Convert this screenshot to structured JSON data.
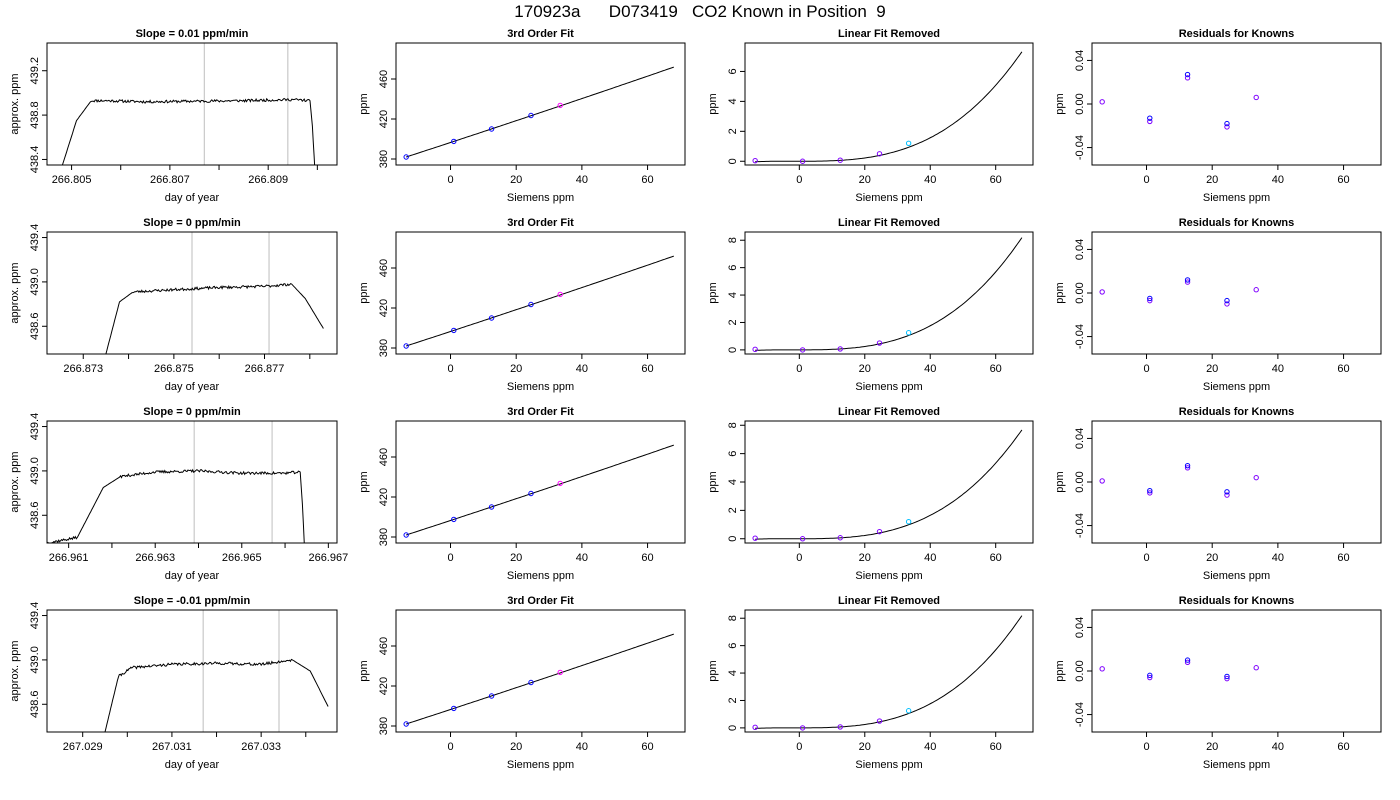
{
  "figure": {
    "title": "170923a      D073419   CO2 Known in Position  9"
  },
  "colors": {
    "trace": "#000000",
    "gridline": "#bebebe",
    "point_blue": "#0000ff",
    "point_magenta": "#ff00ff",
    "point_cyan": "#00bfff",
    "point_purple": "#7f00ff"
  },
  "chart_data": [
    {
      "type": "line",
      "row": 1,
      "title": "Slope =  0.01  ppm/min",
      "xlabel": "day of year",
      "ylabel": "approx. ppm",
      "xlim": [
        266.8045,
        266.8104
      ],
      "ylim": [
        438.35,
        439.45
      ],
      "xticks": [
        266.805,
        266.807,
        266.809
      ],
      "xtick_labels": [
        "266.805",
        "266.807",
        "266.809"
      ],
      "xminor": [
        266.806,
        266.808,
        266.81
      ],
      "yticks": [
        438.4,
        438.8,
        439.2
      ],
      "ytick_labels": [
        "438.4",
        "438.8",
        "439.2"
      ],
      "vlines": [
        266.8077,
        266.8094
      ],
      "x": [
        266.8048,
        266.8051,
        266.8054,
        266.8057,
        266.8065,
        266.8075,
        266.8085,
        266.8095,
        266.80985,
        266.8099,
        266.80995
      ],
      "y": [
        438.33,
        438.75,
        438.93,
        438.93,
        438.92,
        438.925,
        438.93,
        438.94,
        438.93,
        438.7,
        438.3
      ],
      "noise": 0.012,
      "seed": 11
    },
    {
      "type": "line",
      "row": 2,
      "title": "Slope =  0  ppm/min",
      "xlabel": "day of year",
      "ylabel": "approx. ppm",
      "xlim": [
        266.8722,
        266.8786
      ],
      "ylim": [
        438.35,
        439.45
      ],
      "xticks": [
        266.873,
        266.875,
        266.877
      ],
      "xtick_labels": [
        "266.873",
        "266.875",
        "266.877"
      ],
      "xminor": [
        266.874,
        266.876,
        266.878
      ],
      "yticks": [
        438.6,
        439.0,
        439.4
      ],
      "ytick_labels": [
        "438.6",
        "439.0",
        "439.4"
      ],
      "vlines": [
        266.8754,
        266.8771
      ],
      "x": [
        266.8735,
        266.8738,
        266.8741,
        266.875,
        266.876,
        266.877,
        266.8776,
        266.8779,
        266.8783
      ],
      "y": [
        438.35,
        438.82,
        438.91,
        438.93,
        438.95,
        438.96,
        438.98,
        438.85,
        438.58
      ],
      "noise": 0.012,
      "seed": 23
    },
    {
      "type": "line",
      "row": 3,
      "title": "Slope =  0  ppm/min",
      "xlabel": "day of year",
      "ylabel": "approx. ppm",
      "xlim": [
        266.9605,
        266.9672
      ],
      "ylim": [
        438.35,
        439.45
      ],
      "xticks": [
        266.961,
        266.963,
        266.965,
        266.967
      ],
      "xtick_labels": [
        "266.961",
        "266.963",
        "266.965",
        "266.967"
      ],
      "xminor": [
        266.962,
        266.964,
        266.966
      ],
      "yticks": [
        438.6,
        439.0,
        439.4
      ],
      "ytick_labels": [
        "438.6",
        "439.0",
        "439.4"
      ],
      "vlines": [
        266.9639,
        266.9657
      ],
      "x": [
        266.9605,
        266.9612,
        266.9618,
        266.9622,
        266.963,
        266.964,
        266.965,
        266.966,
        266.96635,
        266.9664,
        266.96645
      ],
      "y": [
        438.35,
        438.4,
        438.85,
        438.95,
        438.99,
        439.0,
        438.98,
        438.98,
        438.99,
        438.7,
        438.3
      ],
      "noise": 0.012,
      "seed": 37
    },
    {
      "type": "line",
      "row": 4,
      "title": "Slope =  -0.01  ppm/min",
      "xlabel": "day of year",
      "ylabel": "approx. ppm",
      "xlim": [
        267.0282,
        267.0347
      ],
      "ylim": [
        438.35,
        439.45
      ],
      "xticks": [
        267.029,
        267.031,
        267.033
      ],
      "xtick_labels": [
        "267.029",
        "267.031",
        "267.033"
      ],
      "xminor": [
        267.03,
        267.032,
        267.034
      ],
      "yticks": [
        438.6,
        439.0,
        439.4
      ],
      "ytick_labels": [
        "438.6",
        "439.0",
        "439.4"
      ],
      "vlines": [
        267.0317,
        267.0334
      ],
      "x": [
        267.0295,
        267.0298,
        267.0301,
        267.031,
        267.032,
        267.033,
        267.0337,
        267.0341,
        267.0345
      ],
      "y": [
        438.35,
        438.85,
        438.93,
        438.96,
        438.97,
        438.96,
        439.0,
        438.9,
        438.58
      ],
      "noise": 0.012,
      "seed": 41
    },
    {
      "type": "line",
      "row": 1,
      "title": "3rd Order Fit",
      "xlabel": "Siemens ppm",
      "ylabel": "ppm",
      "xlim": [
        -16.6,
        71.4
      ],
      "ylim": [
        374,
        496
      ],
      "xticks": [
        0,
        20,
        40,
        60
      ],
      "yticks": [
        380,
        420,
        460
      ],
      "curve": {
        "coef": [
          382.0,
          1.07,
          0.0004,
          1e-07
        ],
        "x0": -13.5
      },
      "points": [
        {
          "x": -13.5,
          "y": 382.0,
          "color": "#0000ff"
        },
        {
          "x": 1.0,
          "y": 397.6,
          "color": "#0000ff"
        },
        {
          "x": 12.5,
          "y": 410.0,
          "color": "#0000ff"
        },
        {
          "x": 24.5,
          "y": 423.5,
          "color": "#0000ff"
        },
        {
          "x": 33.4,
          "y": 433.6,
          "color": "#ff00ff"
        }
      ]
    },
    {
      "type": "line",
      "row": 2,
      "title": "3rd Order Fit",
      "xlabel": "Siemens ppm",
      "ylabel": "ppm",
      "xlim": [
        -16.6,
        71.4
      ],
      "ylim": [
        374,
        496
      ],
      "xticks": [
        0,
        20,
        40,
        60
      ],
      "yticks": [
        380,
        420,
        460
      ],
      "curve": {
        "coef": [
          382.0,
          1.07,
          0.0004,
          1e-07
        ],
        "x0": -13.5
      },
      "points": [
        {
          "x": -13.5,
          "y": 382.0,
          "color": "#0000ff"
        },
        {
          "x": 1.0,
          "y": 397.6,
          "color": "#0000ff"
        },
        {
          "x": 12.5,
          "y": 410.0,
          "color": "#0000ff"
        },
        {
          "x": 24.5,
          "y": 423.5,
          "color": "#0000ff"
        },
        {
          "x": 33.4,
          "y": 433.6,
          "color": "#ff00ff"
        }
      ]
    },
    {
      "type": "line",
      "row": 3,
      "title": "3rd Order Fit",
      "xlabel": "Siemens ppm",
      "ylabel": "ppm",
      "xlim": [
        -16.6,
        71.4
      ],
      "ylim": [
        374,
        496
      ],
      "xticks": [
        0,
        20,
        40,
        60
      ],
      "yticks": [
        380,
        420,
        460
      ],
      "curve": {
        "coef": [
          382.0,
          1.07,
          0.0004,
          1e-07
        ],
        "x0": -13.5
      },
      "points": [
        {
          "x": -13.5,
          "y": 382.0,
          "color": "#0000ff"
        },
        {
          "x": 1.0,
          "y": 397.6,
          "color": "#0000ff"
        },
        {
          "x": 12.5,
          "y": 410.0,
          "color": "#0000ff"
        },
        {
          "x": 24.5,
          "y": 423.5,
          "color": "#0000ff"
        },
        {
          "x": 33.4,
          "y": 433.6,
          "color": "#ff00ff"
        }
      ]
    },
    {
      "type": "line",
      "row": 4,
      "title": "3rd Order Fit",
      "xlabel": "Siemens ppm",
      "ylabel": "ppm",
      "xlim": [
        -16.6,
        71.4
      ],
      "ylim": [
        374,
        496
      ],
      "xticks": [
        0,
        20,
        40,
        60
      ],
      "yticks": [
        380,
        420,
        460
      ],
      "curve": {
        "coef": [
          382.0,
          1.07,
          0.0004,
          1e-07
        ],
        "x0": -13.5
      },
      "points": [
        {
          "x": -13.5,
          "y": 382.0,
          "color": "#0000ff"
        },
        {
          "x": 1.0,
          "y": 397.6,
          "color": "#0000ff"
        },
        {
          "x": 12.5,
          "y": 410.0,
          "color": "#0000ff"
        },
        {
          "x": 24.5,
          "y": 423.5,
          "color": "#0000ff"
        },
        {
          "x": 33.4,
          "y": 433.6,
          "color": "#ff00ff"
        }
      ]
    },
    {
      "type": "line",
      "row": 1,
      "title": "Linear Fit Removed",
      "xlabel": "Siemens ppm",
      "ylabel": "ppm",
      "xlim": [
        -16.6,
        71.4
      ],
      "ylim": [
        -0.25,
        7.9
      ],
      "xticks": [
        0,
        20,
        40,
        60
      ],
      "yticks": [
        0,
        2,
        4,
        6
      ],
      "curve": {
        "coef": [
          0.0,
          0.0,
          0.00012,
          2.15e-05
        ],
        "x0": 0
      },
      "points": [
        {
          "x": -13.5,
          "y": 0.04,
          "color": "#7f00ff"
        },
        {
          "x": 1.0,
          "y": 0.0,
          "color": "#7f00ff"
        },
        {
          "x": 12.5,
          "y": 0.07,
          "color": "#7f00ff"
        },
        {
          "x": 24.5,
          "y": 0.5,
          "color": "#7f00ff"
        },
        {
          "x": 33.4,
          "y": 1.2,
          "color": "#00bfff"
        }
      ]
    },
    {
      "type": "line",
      "row": 2,
      "title": "Linear Fit Removed",
      "xlabel": "Siemens ppm",
      "ylabel": "ppm",
      "xlim": [
        -16.6,
        71.4
      ],
      "ylim": [
        -0.3,
        8.6
      ],
      "xticks": [
        0,
        20,
        40,
        60
      ],
      "yticks": [
        0,
        2,
        4,
        6,
        8
      ],
      "curve": {
        "coef": [
          0.0,
          0.0,
          0.00014,
          2.4e-05
        ],
        "x0": 0
      },
      "points": [
        {
          "x": -13.5,
          "y": 0.04,
          "color": "#7f00ff"
        },
        {
          "x": 1.0,
          "y": 0.0,
          "color": "#7f00ff"
        },
        {
          "x": 12.5,
          "y": 0.07,
          "color": "#7f00ff"
        },
        {
          "x": 24.5,
          "y": 0.5,
          "color": "#7f00ff"
        },
        {
          "x": 33.4,
          "y": 1.25,
          "color": "#00bfff"
        }
      ]
    },
    {
      "type": "line",
      "row": 3,
      "title": "Linear Fit Removed",
      "xlabel": "Siemens ppm",
      "ylabel": "ppm",
      "xlim": [
        -16.6,
        71.4
      ],
      "ylim": [
        -0.3,
        8.3
      ],
      "xticks": [
        0,
        20,
        40,
        60
      ],
      "yticks": [
        0,
        2,
        4,
        6,
        8
      ],
      "curve": {
        "coef": [
          0.0,
          0.0,
          0.00013,
          2.25e-05
        ],
        "x0": 0
      },
      "points": [
        {
          "x": -13.5,
          "y": 0.04,
          "color": "#7f00ff"
        },
        {
          "x": 1.0,
          "y": 0.0,
          "color": "#7f00ff"
        },
        {
          "x": 12.5,
          "y": 0.07,
          "color": "#7f00ff"
        },
        {
          "x": 24.5,
          "y": 0.5,
          "color": "#7f00ff"
        },
        {
          "x": 33.4,
          "y": 1.2,
          "color": "#00bfff"
        }
      ]
    },
    {
      "type": "line",
      "row": 4,
      "title": "Linear Fit Removed",
      "xlabel": "Siemens ppm",
      "ylabel": "ppm",
      "xlim": [
        -16.6,
        71.4
      ],
      "ylim": [
        -0.3,
        8.6
      ],
      "xticks": [
        0,
        20,
        40,
        60
      ],
      "yticks": [
        0,
        2,
        4,
        6,
        8
      ],
      "curve": {
        "coef": [
          0.0,
          0.0,
          0.00014,
          2.4e-05
        ],
        "x0": 0
      },
      "points": [
        {
          "x": -13.5,
          "y": 0.04,
          "color": "#7f00ff"
        },
        {
          "x": 1.0,
          "y": 0.0,
          "color": "#7f00ff"
        },
        {
          "x": 12.5,
          "y": 0.07,
          "color": "#7f00ff"
        },
        {
          "x": 24.5,
          "y": 0.5,
          "color": "#7f00ff"
        },
        {
          "x": 33.4,
          "y": 1.25,
          "color": "#00bfff"
        }
      ]
    },
    {
      "type": "scatter",
      "row": 1,
      "title": "Residuals for Knowns",
      "xlabel": "Siemens ppm",
      "ylabel": "ppm",
      "xlim": [
        -16.6,
        71.4
      ],
      "ylim": [
        -0.056,
        0.056
      ],
      "xticks": [
        0,
        20,
        40,
        60
      ],
      "yticks": [
        -0.04,
        0.0,
        0.04
      ],
      "ytick_labels": [
        "-0.04",
        "0.00",
        "0.04"
      ],
      "points": [
        {
          "x": -13.5,
          "y": 0.002,
          "color": "#7f00ff"
        },
        {
          "x": 1.0,
          "y": -0.016,
          "color": "#7f00ff"
        },
        {
          "x": 1.0,
          "y": -0.013,
          "color": "#0000ff"
        },
        {
          "x": 12.5,
          "y": 0.024,
          "color": "#7f00ff"
        },
        {
          "x": 12.5,
          "y": 0.027,
          "color": "#0000ff"
        },
        {
          "x": 24.5,
          "y": -0.021,
          "color": "#7f00ff"
        },
        {
          "x": 24.5,
          "y": -0.018,
          "color": "#0000ff"
        },
        {
          "x": 33.4,
          "y": 0.006,
          "color": "#7f00ff"
        }
      ]
    },
    {
      "type": "scatter",
      "row": 2,
      "title": "Residuals for Knowns",
      "xlabel": "Siemens ppm",
      "ylabel": "ppm",
      "xlim": [
        -16.6,
        71.4
      ],
      "ylim": [
        -0.056,
        0.056
      ],
      "xticks": [
        0,
        20,
        40,
        60
      ],
      "yticks": [
        -0.04,
        0.0,
        0.04
      ],
      "ytick_labels": [
        "-0.04",
        "0.00",
        "0.04"
      ],
      "points": [
        {
          "x": -13.5,
          "y": 0.001,
          "color": "#7f00ff"
        },
        {
          "x": 1.0,
          "y": -0.007,
          "color": "#7f00ff"
        },
        {
          "x": 1.0,
          "y": -0.005,
          "color": "#0000ff"
        },
        {
          "x": 12.5,
          "y": 0.01,
          "color": "#7f00ff"
        },
        {
          "x": 12.5,
          "y": 0.012,
          "color": "#0000ff"
        },
        {
          "x": 24.5,
          "y": -0.01,
          "color": "#7f00ff"
        },
        {
          "x": 24.5,
          "y": -0.007,
          "color": "#0000ff"
        },
        {
          "x": 33.4,
          "y": 0.003,
          "color": "#7f00ff"
        }
      ]
    },
    {
      "type": "scatter",
      "row": 3,
      "title": "Residuals for Knowns",
      "xlabel": "Siemens ppm",
      "ylabel": "ppm",
      "xlim": [
        -16.6,
        71.4
      ],
      "ylim": [
        -0.056,
        0.056
      ],
      "xticks": [
        0,
        20,
        40,
        60
      ],
      "yticks": [
        -0.04,
        0.0,
        0.04
      ],
      "ytick_labels": [
        "-0.04",
        "0.00",
        "0.04"
      ],
      "points": [
        {
          "x": -13.5,
          "y": 0.001,
          "color": "#7f00ff"
        },
        {
          "x": 1.0,
          "y": -0.01,
          "color": "#7f00ff"
        },
        {
          "x": 1.0,
          "y": -0.008,
          "color": "#0000ff"
        },
        {
          "x": 12.5,
          "y": 0.013,
          "color": "#7f00ff"
        },
        {
          "x": 12.5,
          "y": 0.015,
          "color": "#0000ff"
        },
        {
          "x": 24.5,
          "y": -0.012,
          "color": "#7f00ff"
        },
        {
          "x": 24.5,
          "y": -0.009,
          "color": "#0000ff"
        },
        {
          "x": 33.4,
          "y": 0.004,
          "color": "#7f00ff"
        }
      ]
    },
    {
      "type": "scatter",
      "row": 4,
      "title": "Residuals for Knowns",
      "xlabel": "Siemens ppm",
      "ylabel": "ppm",
      "xlim": [
        -16.6,
        71.4
      ],
      "ylim": [
        -0.056,
        0.056
      ],
      "xticks": [
        0,
        20,
        40,
        60
      ],
      "yticks": [
        -0.04,
        0.0,
        0.04
      ],
      "ytick_labels": [
        "-0.04",
        "0.00",
        "0.04"
      ],
      "points": [
        {
          "x": -13.5,
          "y": 0.002,
          "color": "#7f00ff"
        },
        {
          "x": 1.0,
          "y": -0.006,
          "color": "#7f00ff"
        },
        {
          "x": 1.0,
          "y": -0.004,
          "color": "#0000ff"
        },
        {
          "x": 12.5,
          "y": 0.008,
          "color": "#7f00ff"
        },
        {
          "x": 12.5,
          "y": 0.01,
          "color": "#0000ff"
        },
        {
          "x": 24.5,
          "y": -0.007,
          "color": "#7f00ff"
        },
        {
          "x": 24.5,
          "y": -0.005,
          "color": "#0000ff"
        },
        {
          "x": 33.4,
          "y": 0.003,
          "color": "#7f00ff"
        }
      ]
    }
  ]
}
